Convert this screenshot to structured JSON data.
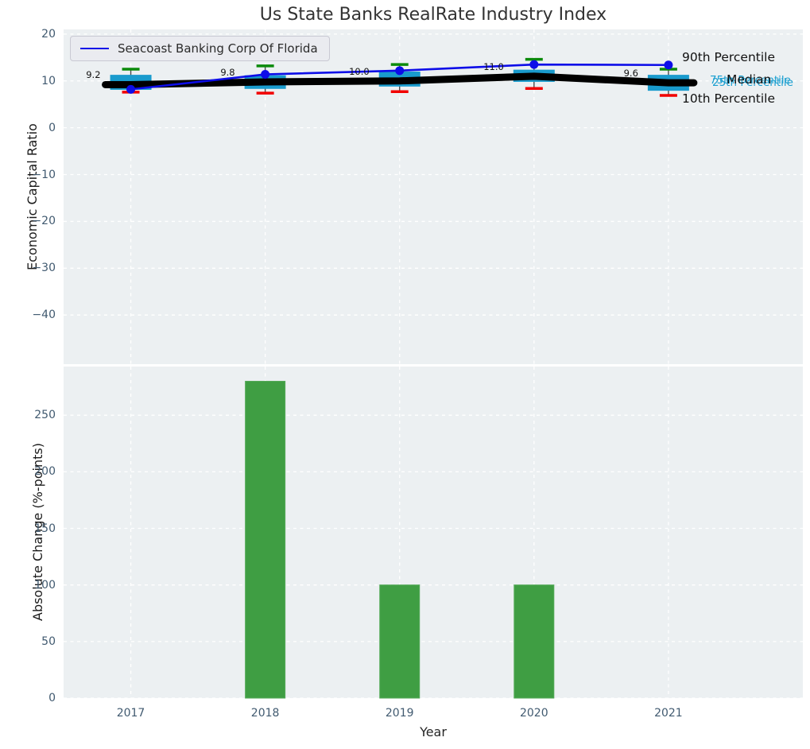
{
  "title": "Us State Banks RealRate Industry Index",
  "legend": {
    "label": "Seacoast Banking Corp Of Florida",
    "line_color": "#0d0de8"
  },
  "colors": {
    "plot_background": "#ecf0f2",
    "grid": "#ffffff",
    "box_fill": "#199bcd",
    "median_line": "#000000",
    "company_line": "#0d0de8",
    "cap_top_green": "#0b8a0b",
    "cap_bottom_red": "#f20000",
    "whisker": "#4a4a4a",
    "bar_green": "#3f9e43",
    "tick_text": "#415a70",
    "annotation_cyan": "#1a9fd0",
    "annotation_black": "#111111"
  },
  "chart_data": [
    {
      "type": "boxplot+line",
      "panel": "top",
      "ylabel": "Economic Capital Ratio",
      "categories": [
        "2017",
        "2018",
        "2019",
        "2020",
        "2021"
      ],
      "ylim": [
        -50.5,
        21
      ],
      "yticks": [
        20,
        10,
        0,
        -10,
        -20,
        -30,
        -40
      ],
      "grid": true,
      "boxes": [
        {
          "year": "2017",
          "p10": 7.6,
          "q1": 8.1,
          "median": 9.2,
          "q3": 11.3,
          "p90": 12.5
        },
        {
          "year": "2018",
          "p10": 7.4,
          "q1": 8.3,
          "median": 9.8,
          "q3": 11.2,
          "p90": 13.2
        },
        {
          "year": "2019",
          "p10": 7.7,
          "q1": 8.8,
          "median": 10.0,
          "q3": 12.0,
          "p90": 13.5
        },
        {
          "year": "2020",
          "p10": 8.4,
          "q1": 9.8,
          "median": 11.0,
          "q3": 12.4,
          "p90": 14.6
        },
        {
          "year": "2021",
          "p10": 6.9,
          "q1": 7.9,
          "median": 9.6,
          "q3": 11.3,
          "p90": 12.5
        }
      ],
      "median_labels": [
        "9.2",
        "9.8",
        "10.0",
        "11.0",
        "9.6"
      ],
      "median_line_values": [
        9.2,
        9.8,
        10.0,
        11.0,
        9.6
      ],
      "series": [
        {
          "name": "Seacoast Banking Corp Of Florida",
          "color": "#0d0de8",
          "values": [
            8.2,
            11.4,
            12.2,
            13.5,
            13.4
          ]
        }
      ],
      "annotations": [
        {
          "text": "90th Percentile",
          "x": 858,
          "y": 64,
          "color": "#111111",
          "size": 15.5
        },
        {
          "text": "75th Percentile",
          "x": 893,
          "y": 94,
          "color": "#1a9fd0",
          "size": 13.5
        },
        {
          "text": "25th Percentile",
          "x": 896,
          "y": 97,
          "color": "#1a9fd0",
          "size": 13.5
        },
        {
          "text": "Median",
          "x": 914,
          "y": 92,
          "color": "#111111",
          "size": 15.5
        },
        {
          "text": "10th Percentile",
          "x": 858,
          "y": 116,
          "color": "#111111",
          "size": 15.5
        }
      ]
    },
    {
      "type": "bar",
      "panel": "bottom",
      "ylabel": "Absolute Change (%-points)",
      "xlabel": "Year",
      "categories": [
        "2017",
        "2018",
        "2019",
        "2020",
        "2021"
      ],
      "values": [
        0,
        280,
        100,
        100,
        0
      ],
      "ylim": [
        0,
        293
      ],
      "yticks": [
        0,
        50,
        100,
        150,
        200,
        250
      ],
      "grid": true,
      "bar_color": "#3f9e43"
    }
  ]
}
